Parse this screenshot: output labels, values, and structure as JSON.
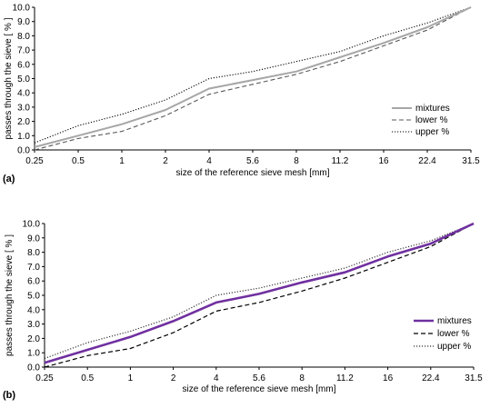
{
  "chart_data": [
    {
      "type": "line",
      "panel_label": "(a)",
      "xlabel": "size of the reference sieve mesh  [mm]",
      "ylabel": "passes  through  the  sieve  [ % ]",
      "categories": [
        "0.25",
        "0.5",
        "1",
        "2",
        "4",
        "5.6",
        "8",
        "11.2",
        "16",
        "22.4",
        "31.5"
      ],
      "yticks": [
        "0.0",
        "1.0",
        "2.0",
        "3.0",
        "4.0",
        "5.0",
        "6.0",
        "7.0",
        "8.0",
        "9.0",
        "10.0"
      ],
      "ylim": [
        0,
        10
      ],
      "grid": false,
      "legend_position": "right",
      "series": [
        {
          "name": "mixtures",
          "style": "solid",
          "color": "#a6a6a6",
          "values": [
            0.2,
            1.0,
            1.8,
            2.8,
            4.3,
            4.9,
            5.5,
            6.5,
            7.5,
            8.6,
            10.0
          ]
        },
        {
          "name": "lower %",
          "style": "dashed",
          "color": "#595959",
          "values": [
            0.0,
            0.8,
            1.3,
            2.4,
            3.9,
            4.6,
            5.3,
            6.2,
            7.3,
            8.4,
            10.0
          ]
        },
        {
          "name": "upper %",
          "style": "dotted",
          "color": "#000000",
          "values": [
            0.5,
            1.7,
            2.5,
            3.5,
            5.0,
            5.5,
            6.2,
            6.9,
            8.0,
            8.9,
            10.0
          ]
        }
      ]
    },
    {
      "type": "line",
      "panel_label": "(b)",
      "xlabel": "size of the reference sieve mesh  [mm]",
      "ylabel": "passes  through  the  sieve  [ % ]",
      "categories": [
        "0.25",
        "0.5",
        "1",
        "2",
        "4",
        "5.6",
        "8",
        "11.2",
        "16",
        "22.4",
        "31.5"
      ],
      "yticks": [
        "0.0",
        "1.0",
        "2.0",
        "3.0",
        "4.0",
        "5.0",
        "6.0",
        "7.0",
        "8.0",
        "9.0",
        "10.0"
      ],
      "ylim": [
        0,
        10
      ],
      "grid": false,
      "legend_position": "right",
      "series": [
        {
          "name": "mixtures",
          "style": "solid",
          "color": "#7030a0",
          "values": [
            0.3,
            1.2,
            2.1,
            3.2,
            4.5,
            5.1,
            5.9,
            6.6,
            7.7,
            8.6,
            10.0
          ]
        },
        {
          "name": "lower %",
          "style": "dashed",
          "color": "#000000",
          "values": [
            0.0,
            0.8,
            1.3,
            2.4,
            3.9,
            4.5,
            5.3,
            6.2,
            7.3,
            8.4,
            10.0
          ]
        },
        {
          "name": "upper %",
          "style": "dotted",
          "color": "#333333",
          "values": [
            0.6,
            1.7,
            2.5,
            3.5,
            5.0,
            5.5,
            6.2,
            6.9,
            8.0,
            8.8,
            10.0
          ]
        }
      ]
    }
  ]
}
